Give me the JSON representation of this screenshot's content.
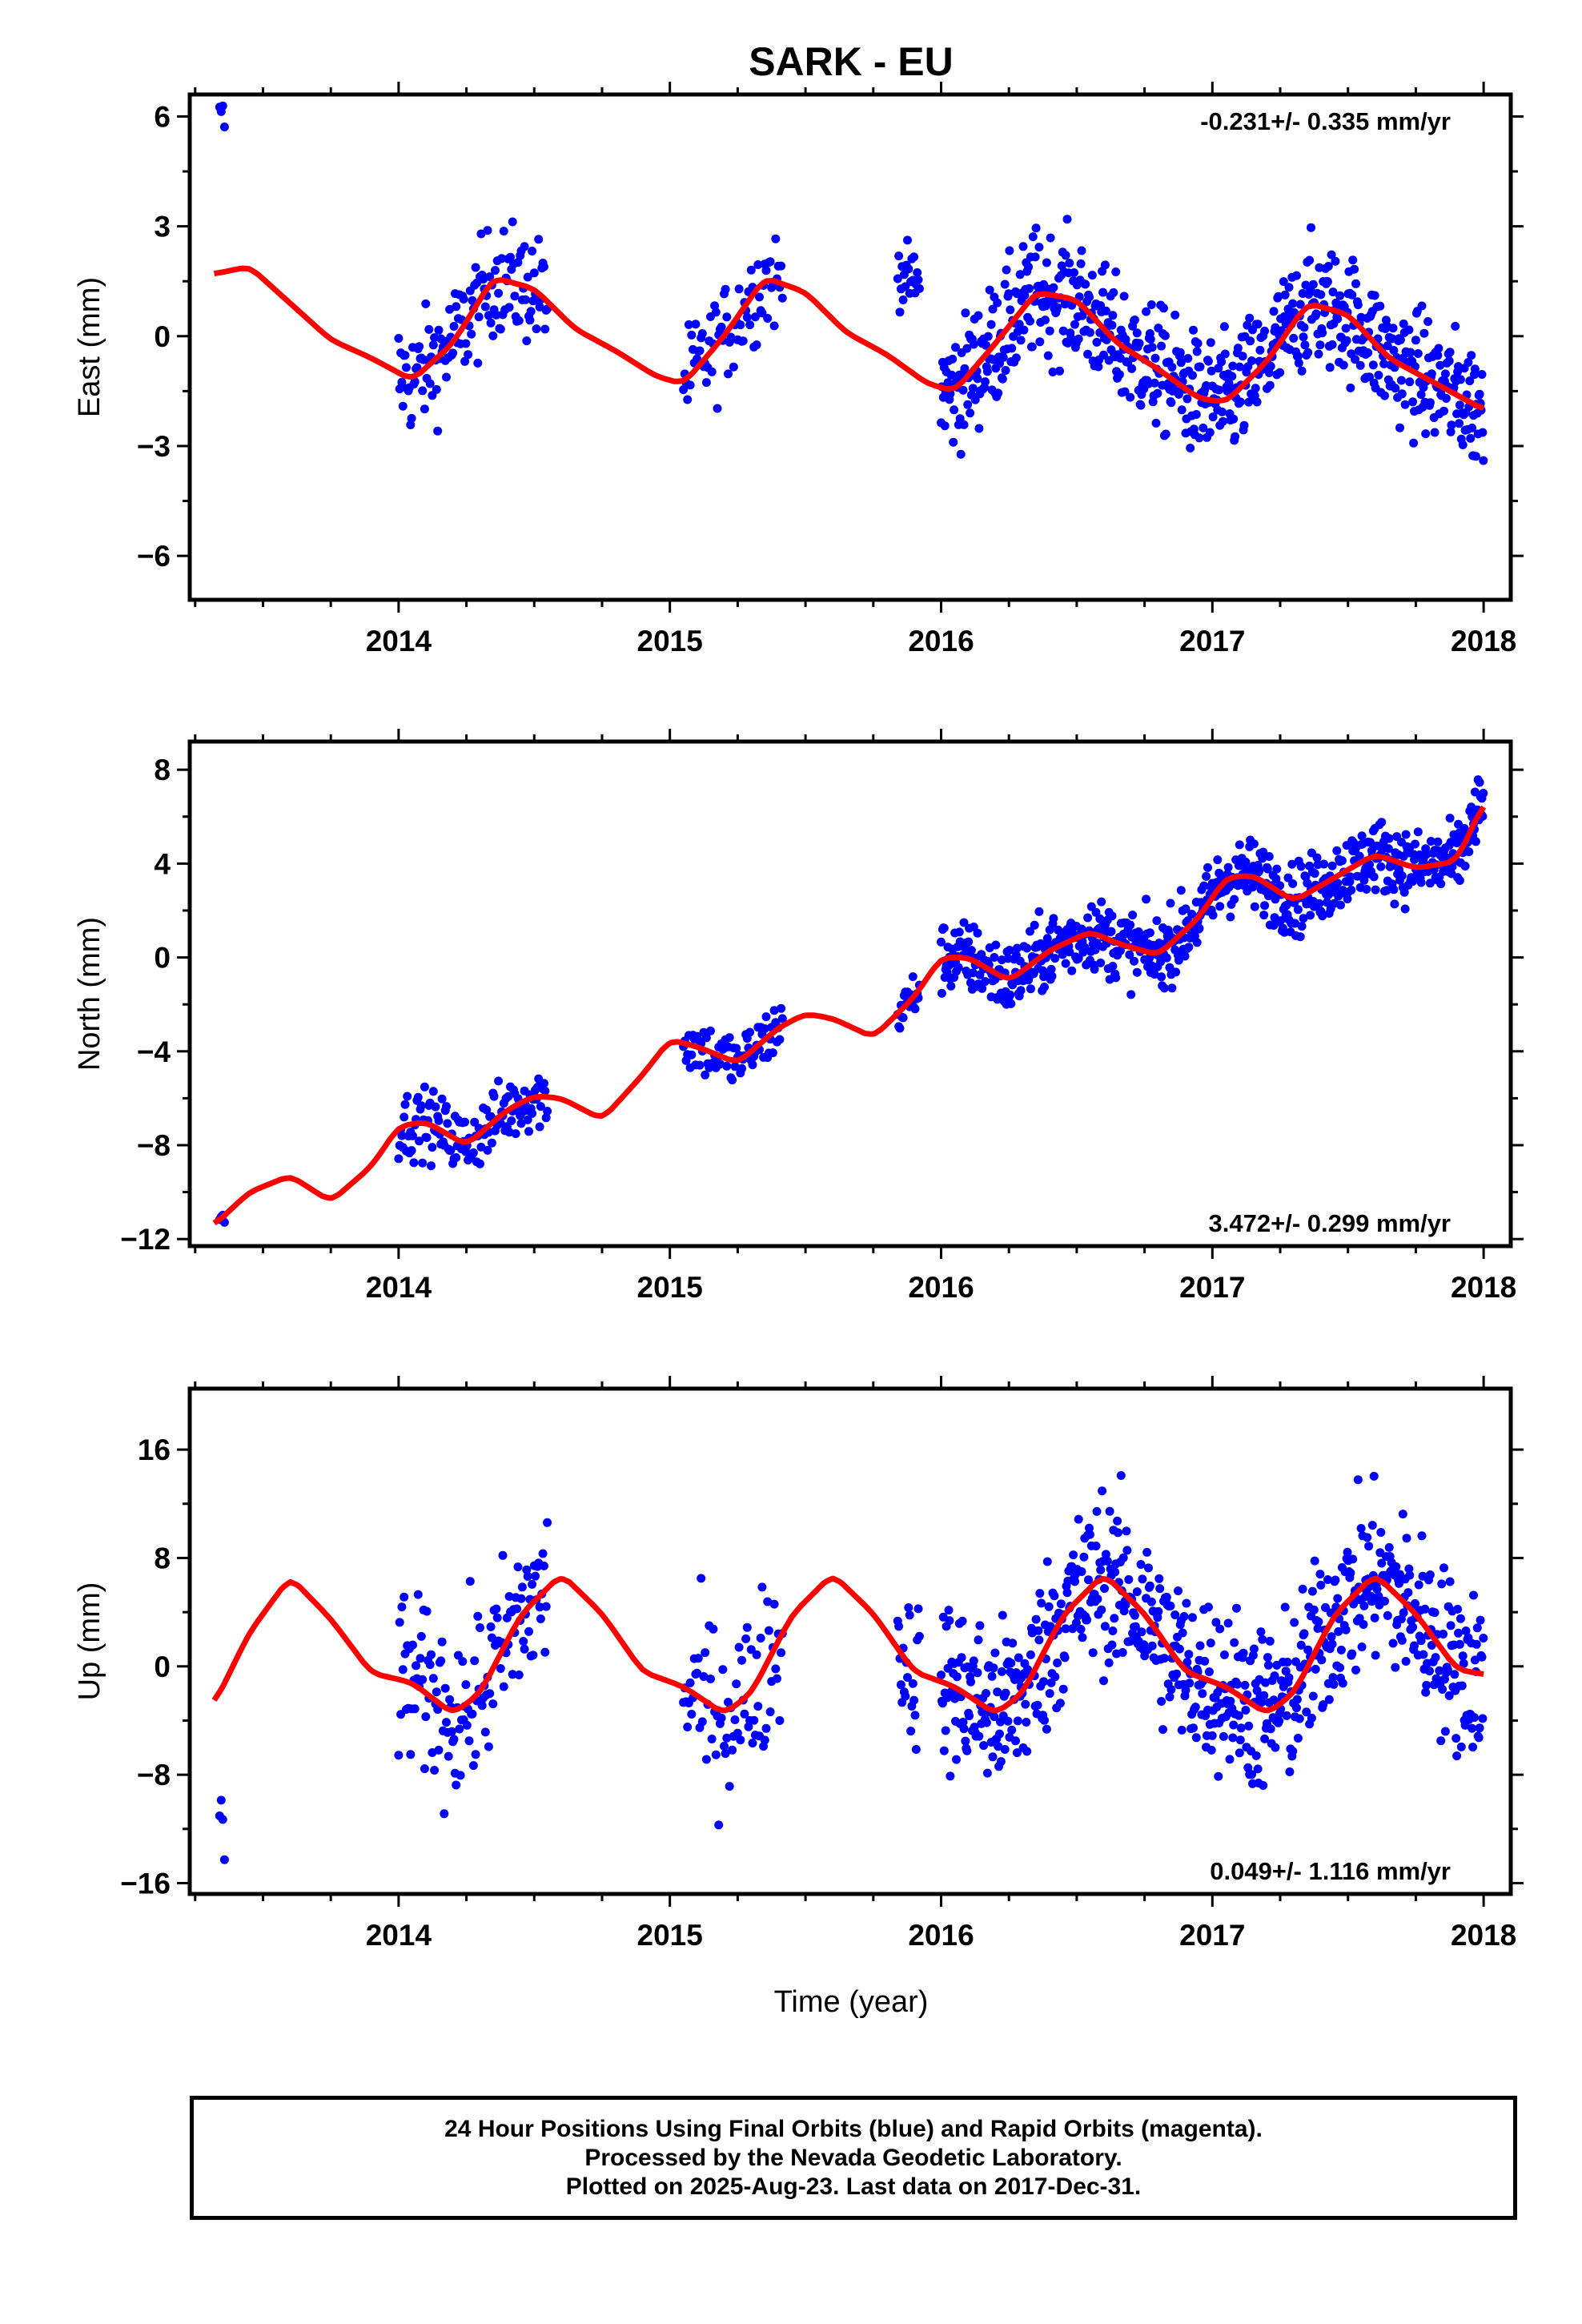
{
  "chart_data": {
    "title": "SARK - EU",
    "xlabel": "Time (year)",
    "x_ticks": [
      "2014",
      "2015",
      "2016",
      "2017",
      "2018"
    ],
    "xlim": [
      2013.23,
      2018.1
    ],
    "colors": {
      "observations": "#0000ff",
      "model": "#ff0000"
    },
    "panels": [
      {
        "type": "scatter",
        "ylabel": "East (mm)",
        "ylim": [
          -7.2,
          6.6
        ],
        "y_ticks": [
          6,
          3,
          0,
          -3,
          -6
        ],
        "y_tick_labels": [
          "6",
          "3",
          "0",
          "−3",
          "−6"
        ],
        "rate_text": "-0.231+/- 0.335 mm/yr",
        "rate_position": "top-right",
        "model_curve": {
          "x": [
            2013.32,
            2013.45,
            2013.6,
            2013.75,
            2013.9,
            2014.05,
            2014.2,
            2014.35,
            2014.5,
            2014.65,
            2014.8,
            2014.95,
            2015.05,
            2015.2,
            2015.35,
            2015.5,
            2015.65,
            2015.8,
            2015.95,
            2016.05,
            2016.2,
            2016.35,
            2016.5,
            2016.65,
            2016.8,
            2016.95,
            2017.05,
            2017.2,
            2017.35,
            2017.5,
            2017.65,
            2017.8,
            2017.95,
            2018.0
          ],
          "y": [
            1.7,
            1.9,
            0.9,
            -0.1,
            -0.6,
            -1.2,
            -0.2,
            1.6,
            1.3,
            0.2,
            -0.4,
            -1.1,
            -1.3,
            0.0,
            1.6,
            1.2,
            0.1,
            -0.5,
            -1.3,
            -1.5,
            -0.2,
            1.2,
            1.0,
            -0.2,
            -0.9,
            -1.7,
            -1.8,
            -0.7,
            0.9,
            0.6,
            -0.6,
            -1.2,
            -1.8,
            -2.0
          ]
        },
        "segments": [
          {
            "start": 2013.34,
            "end": 2013.36,
            "step": 0.006,
            "noise": 0.6,
            "offset": 4.1
          },
          {
            "start": 2014.0,
            "end": 2014.55,
            "step": 0.004,
            "noise": 1.1,
            "offset": 0
          },
          {
            "start": 2015.05,
            "end": 2015.42,
            "step": 0.005,
            "noise": 1.0,
            "offset": 0
          },
          {
            "start": 2015.84,
            "end": 2015.92,
            "step": 0.004,
            "noise": 0.6,
            "offset": 2.5
          },
          {
            "start": 2016.0,
            "end": 2018.0,
            "step": 0.0028,
            "noise": 1.2,
            "offset": 0
          }
        ]
      },
      {
        "type": "scatter",
        "ylabel": "North (mm)",
        "ylim": [
          -12.3,
          9.2
        ],
        "y_ticks": [
          8,
          4,
          0,
          -4,
          -8,
          -12
        ],
        "y_tick_labels": [
          "8",
          "4",
          "0",
          "−4",
          "−8",
          "−12"
        ],
        "rate_text": "3.472+/- 0.299 mm/yr",
        "rate_position": "bottom-right",
        "model_curve": {
          "x": [
            2013.32,
            2013.45,
            2013.6,
            2013.75,
            2013.9,
            2014.0,
            2014.1,
            2014.25,
            2014.4,
            2014.5,
            2014.6,
            2014.75,
            2014.9,
            2015.0,
            2015.1,
            2015.25,
            2015.4,
            2015.5,
            2015.6,
            2015.75,
            2015.9,
            2016.0,
            2016.1,
            2016.25,
            2016.4,
            2016.55,
            2016.65,
            2016.8,
            2016.95,
            2017.05,
            2017.15,
            2017.3,
            2017.45,
            2017.6,
            2017.75,
            2017.9,
            2018.0
          ],
          "y": [
            -11.4,
            -10.0,
            -9.3,
            -10.4,
            -8.9,
            -7.2,
            -7.0,
            -8.0,
            -6.5,
            -5.9,
            -6.0,
            -6.9,
            -5.0,
            -3.5,
            -3.8,
            -4.5,
            -3.0,
            -2.4,
            -2.6,
            -3.4,
            -1.7,
            0.0,
            0.0,
            -1.0,
            0.3,
            1.1,
            0.6,
            0.1,
            1.7,
            3.4,
            3.5,
            2.4,
            3.4,
            4.4,
            3.8,
            4.1,
            6.6
          ]
        },
        "segments": [
          {
            "start": 2013.34,
            "end": 2013.36,
            "step": 0.006,
            "noise": 0.6,
            "offset": 0
          },
          {
            "start": 2014.0,
            "end": 2014.55,
            "step": 0.004,
            "noise": 1.0,
            "offset": 0
          },
          {
            "start": 2015.05,
            "end": 2015.42,
            "step": 0.005,
            "noise": 0.9,
            "offset": 0
          },
          {
            "start": 2015.84,
            "end": 2015.92,
            "step": 0.004,
            "noise": 0.8,
            "offset": 0
          },
          {
            "start": 2016.0,
            "end": 2018.0,
            "step": 0.0028,
            "noise": 1.1,
            "offset": 0
          }
        ]
      },
      {
        "type": "scatter",
        "ylabel": "Up (mm)",
        "ylim": [
          -16.8,
          20.5
        ],
        "y_ticks": [
          16,
          8,
          0,
          -8,
          -16
        ],
        "y_tick_labels": [
          "16",
          "8",
          "0",
          "−8",
          "−16"
        ],
        "rate_text": "0.049+/- 1.116 mm/yr",
        "rate_position": "bottom-right",
        "model_curve": {
          "x": [
            2013.32,
            2013.45,
            2013.6,
            2013.75,
            2013.9,
            2014.05,
            2014.2,
            2014.3,
            2014.45,
            2014.6,
            2014.75,
            2014.9,
            2015.05,
            2015.2,
            2015.3,
            2015.45,
            2015.6,
            2015.75,
            2015.9,
            2016.05,
            2016.2,
            2016.3,
            2016.45,
            2016.6,
            2016.75,
            2016.9,
            2017.05,
            2017.2,
            2017.3,
            2017.45,
            2017.6,
            2017.75,
            2017.9,
            2018.0
          ],
          "y": [
            -2.8,
            2.5,
            6.6,
            3.5,
            -0.5,
            -1.2,
            -3.5,
            -2.0,
            3.8,
            6.8,
            3.9,
            -0.4,
            -1.5,
            -3.5,
            -2.0,
            3.8,
            6.8,
            3.9,
            -0.4,
            -1.5,
            -3.5,
            -2.0,
            3.8,
            6.8,
            3.9,
            -0.4,
            -1.5,
            -3.5,
            -2.0,
            3.8,
            6.8,
            3.9,
            -0.2,
            -0.6
          ]
        },
        "segments": [
          {
            "start": 2013.34,
            "end": 2013.36,
            "step": 0.006,
            "noise": 4.0,
            "offset": -10
          },
          {
            "start": 2014.0,
            "end": 2014.55,
            "step": 0.004,
            "noise": 4.5,
            "offset": 0
          },
          {
            "start": 2015.05,
            "end": 2015.42,
            "step": 0.005,
            "noise": 4.5,
            "offset": 0
          },
          {
            "start": 2015.84,
            "end": 2015.92,
            "step": 0.004,
            "noise": 4.0,
            "offset": 0
          },
          {
            "start": 2016.0,
            "end": 2018.0,
            "step": 0.0028,
            "noise": 4.5,
            "offset": 0
          }
        ]
      }
    ]
  },
  "footer": {
    "line1": "24 Hour Positions Using Final Orbits (blue) and Rapid Orbits (magenta).",
    "line2": "Processed by the Nevada Geodetic Laboratory.",
    "line3": "Plotted on 2025-Aug-23. Last data on 2017-Dec-31."
  }
}
